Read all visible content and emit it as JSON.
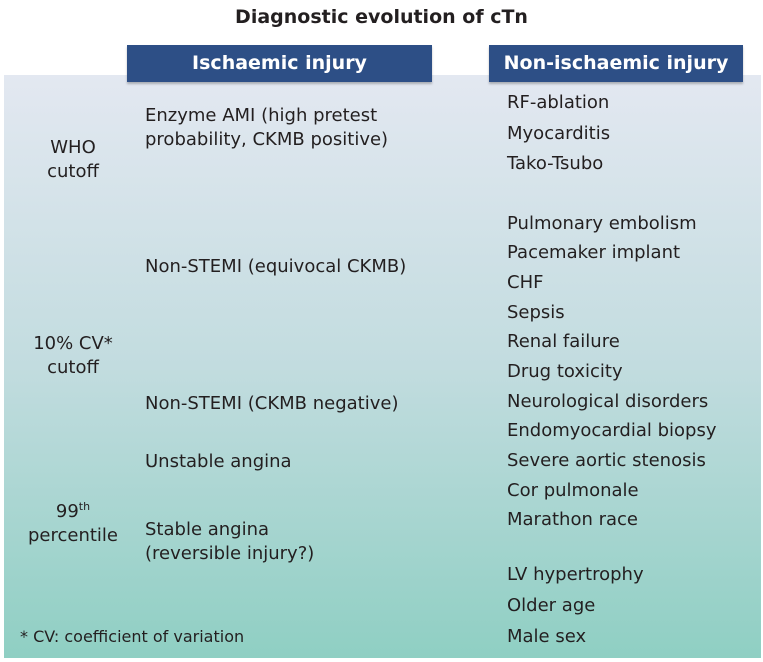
{
  "title": "Diagnostic evolution of cTn",
  "headers": {
    "ischaemic": "Ischaemic injury",
    "non_ischaemic": "Non-ischaemic injury"
  },
  "cutoffs": {
    "who": [
      "WHO",
      "cutoff"
    ],
    "cv10": [
      "10% CV*",
      "cutoff"
    ],
    "p99": {
      "base": "99",
      "sup": "th",
      "line2": "percentile"
    }
  },
  "ischaemic_items": [
    [
      "Enzyme AMI (high pretest",
      "probability, CKMB positive)"
    ],
    [
      "Non-STEMI (equivocal CKMB)"
    ],
    [
      "Non-STEMI (CKMB negative)"
    ],
    [
      "Unstable angina"
    ],
    [
      "Stable angina",
      "(reversible injury?)"
    ]
  ],
  "non_ischaemic_items": [
    "RF-ablation",
    "Myocarditis",
    "Tako-Tsubo",
    "Pulmonary embolism",
    "Pacemaker implant",
    "CHF",
    "Sepsis",
    "Renal failure",
    "Drug toxicity",
    "Neurological disorders",
    "Endomyocardial biopsy",
    "Severe aortic stenosis",
    "Cor pulmonale",
    "Marathon race",
    "LV hypertrophy",
    "Older age",
    "Male sex"
  ],
  "footnote": "* CV: coefficient of variation",
  "colors": {
    "header_bg": "#2d4f86",
    "panel_top": "#e3e8f1",
    "panel_bottom": "#8fcfc3"
  }
}
